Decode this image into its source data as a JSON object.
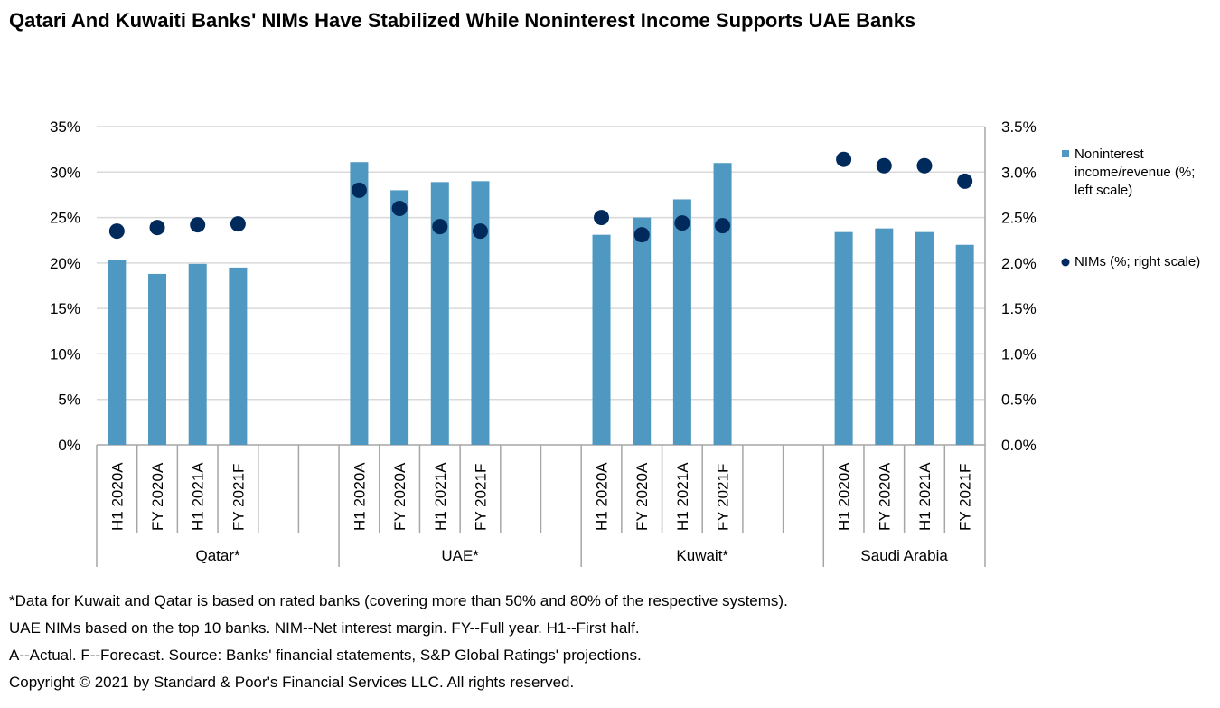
{
  "chart_data": {
    "type": "bar+scatter",
    "title": "Qatari And Kuwaiti Banks' NIMs Have Stabilized While Noninterest Income Supports UAE Banks",
    "groups": [
      "Qatar*",
      "UAE*",
      "Kuwait*",
      "Saudi Arabia"
    ],
    "categories": [
      "H1 2020A",
      "FY 2020A",
      "H1 2021A",
      "FY 2021F"
    ],
    "left_axis": {
      "ticks": [
        "0%",
        "5%",
        "10%",
        "15%",
        "20%",
        "25%",
        "30%",
        "35%"
      ],
      "ylim": [
        0,
        35
      ]
    },
    "right_axis": {
      "ticks": [
        "0.0%",
        "0.5%",
        "1.0%",
        "1.5%",
        "2.0%",
        "2.5%",
        "3.0%",
        "3.5%"
      ],
      "ylim": [
        0,
        3.5
      ]
    },
    "grid": true,
    "legend_position": "right",
    "series": [
      {
        "name": "Noninterest income/revenue (%; left scale)",
        "kind": "bar",
        "axis": "left",
        "color": "#4e98c2",
        "values": [
          [
            20.3,
            18.8,
            19.9,
            19.5
          ],
          [
            31.1,
            28.0,
            28.9,
            29.0
          ],
          [
            23.1,
            25.0,
            27.0,
            31.0
          ],
          [
            23.4,
            23.8,
            23.4,
            22.0
          ]
        ]
      },
      {
        "name": "NIMs (%; right scale)",
        "kind": "scatter",
        "axis": "right",
        "color": "#002a5c",
        "values": [
          [
            2.35,
            2.39,
            2.42,
            2.43
          ],
          [
            2.8,
            2.6,
            2.4,
            2.35
          ],
          [
            2.5,
            2.31,
            2.44,
            2.41
          ],
          [
            3.14,
            3.07,
            3.07,
            2.9
          ]
        ]
      }
    ]
  },
  "footnotes": [
    "*Data for Kuwait and Qatar is based on rated banks (covering  more than 50% and 80% of the respective systems).",
    "UAE NIMs based on the top 10 banks. NIM--Net interest margin. FY--Full year. H1--First half.",
    "A--Actual. F--Forecast. Source: Banks' financial statements, S&P Global Ratings' projections.",
    "Copyright © 2021 by Standard & Poor's Financial Services LLC. All rights reserved."
  ]
}
